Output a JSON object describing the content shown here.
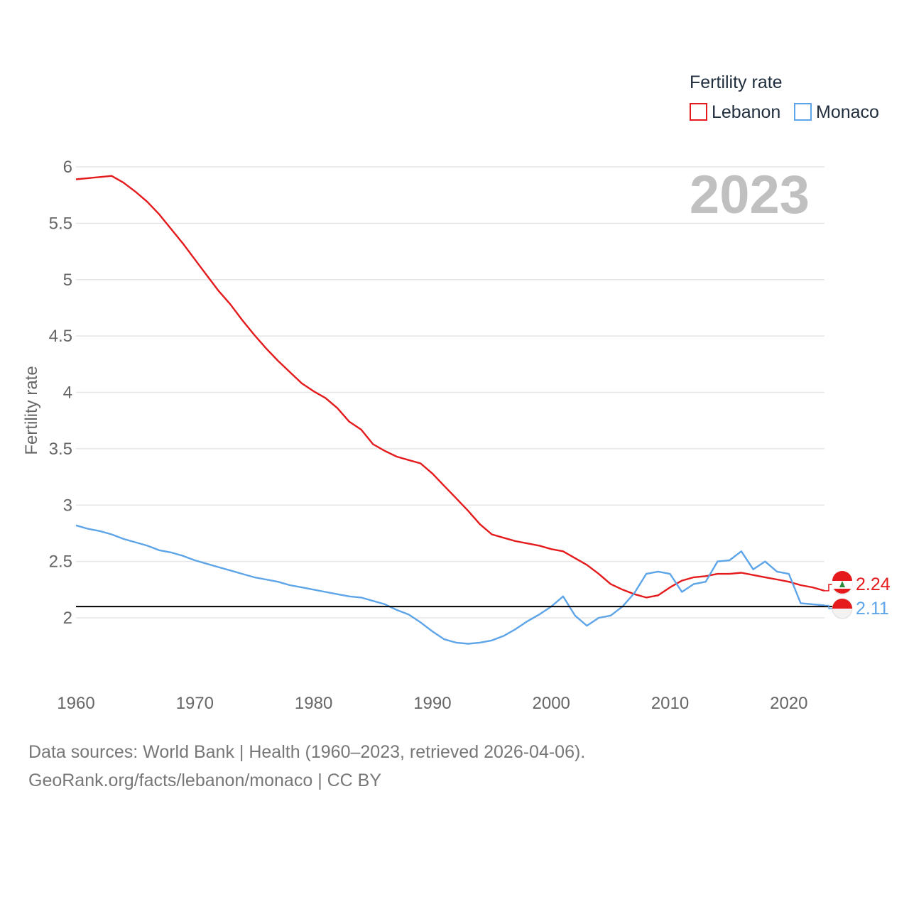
{
  "chart_data": {
    "type": "line",
    "title": "",
    "ylabel": "Fertility rate",
    "xlabel": "",
    "year_label": "2023",
    "legend_title": "Fertility rate",
    "legend_position": "top-right",
    "xlim": [
      1960,
      2023
    ],
    "ylim": [
      1.5,
      6.15
    ],
    "x_ticks": [
      1960,
      1970,
      1980,
      1990,
      2000,
      2010,
      2020
    ],
    "y_ticks": [
      2,
      2.5,
      3,
      3.5,
      4,
      4.5,
      5,
      5.5,
      6
    ],
    "y_tick_labels": [
      "2",
      "2.5",
      "3",
      "3.5",
      "4",
      "4.5",
      "5",
      "5.5",
      "6"
    ],
    "grid": true,
    "reference_line": {
      "y": 2.1,
      "color": "#000000"
    },
    "x": [
      1960,
      1961,
      1962,
      1963,
      1964,
      1965,
      1966,
      1967,
      1968,
      1969,
      1970,
      1971,
      1972,
      1973,
      1974,
      1975,
      1976,
      1977,
      1978,
      1979,
      1980,
      1981,
      1982,
      1983,
      1984,
      1985,
      1986,
      1987,
      1988,
      1989,
      1990,
      1991,
      1992,
      1993,
      1994,
      1995,
      1996,
      1997,
      1998,
      1999,
      2000,
      2001,
      2002,
      2003,
      2004,
      2005,
      2006,
      2007,
      2008,
      2009,
      2010,
      2011,
      2012,
      2013,
      2014,
      2015,
      2016,
      2017,
      2018,
      2019,
      2020,
      2021,
      2022,
      2023
    ],
    "series": [
      {
        "name": "Lebanon",
        "color": "#e41a1c",
        "end_label": "2.24",
        "values": [
          5.89,
          5.9,
          5.91,
          5.92,
          5.86,
          5.78,
          5.69,
          5.58,
          5.45,
          5.32,
          5.18,
          5.04,
          4.9,
          4.78,
          4.64,
          4.51,
          4.39,
          4.28,
          4.18,
          4.08,
          4.01,
          3.95,
          3.86,
          3.74,
          3.67,
          3.54,
          3.48,
          3.43,
          3.4,
          3.37,
          3.28,
          3.17,
          3.06,
          2.95,
          2.83,
          2.74,
          2.71,
          2.68,
          2.66,
          2.64,
          2.61,
          2.59,
          2.53,
          2.47,
          2.39,
          2.3,
          2.25,
          2.21,
          2.18,
          2.2,
          2.27,
          2.33,
          2.36,
          2.37,
          2.39,
          2.39,
          2.4,
          2.38,
          2.36,
          2.34,
          2.32,
          2.29,
          2.27,
          2.24
        ]
      },
      {
        "name": "Monaco",
        "color": "#5da5e8",
        "end_label": "2.11",
        "values": [
          2.82,
          2.79,
          2.77,
          2.74,
          2.7,
          2.67,
          2.64,
          2.6,
          2.58,
          2.55,
          2.51,
          2.48,
          2.45,
          2.42,
          2.39,
          2.36,
          2.34,
          2.32,
          2.29,
          2.27,
          2.25,
          2.23,
          2.21,
          2.19,
          2.18,
          2.15,
          2.12,
          2.07,
          2.03,
          1.96,
          1.88,
          1.81,
          1.78,
          1.77,
          1.78,
          1.8,
          1.84,
          1.9,
          1.97,
          2.03,
          2.1,
          2.19,
          2.02,
          1.93,
          2.0,
          2.02,
          2.1,
          2.22,
          2.39,
          2.41,
          2.39,
          2.23,
          2.3,
          2.32,
          2.5,
          2.51,
          2.59,
          2.43,
          2.5,
          2.41,
          2.39,
          2.13,
          2.12,
          2.11
        ]
      }
    ]
  },
  "footer": {
    "line1": "Data sources: World Bank | Health (1960–2023, retrieved 2026-04-06).",
    "line2": "GeoRank.org/facts/lebanon/monaco | CC BY"
  }
}
